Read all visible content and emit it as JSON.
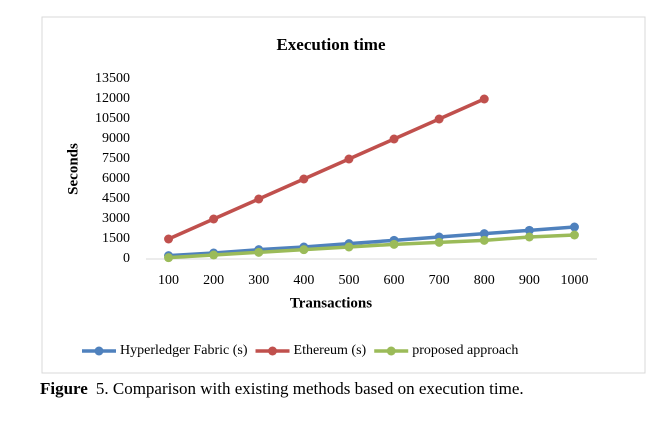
{
  "chart_data": {
    "type": "line",
    "title": "Execution time",
    "x_label": "Transactions",
    "y_label": "Seconds",
    "categories": [
      "100",
      "200",
      "300",
      "400",
      "500",
      "600",
      "700",
      "800",
      "900",
      "1000"
    ],
    "series": [
      {
        "name": "Hyperledger Fabric (s)",
        "color": "#4f81bd",
        "values": [
          250,
          450,
          700,
          900,
          1150,
          1400,
          1650,
          1900,
          2150,
          2400
        ]
      },
      {
        "name": "Ethereum (s)",
        "color": "#c0504d",
        "values": [
          1500,
          3000,
          4500,
          6000,
          7500,
          9000,
          10500,
          12000,
          null,
          null
        ]
      },
      {
        "name": "proposed approach",
        "color": "#9bbb59",
        "values": [
          100,
          300,
          500,
          700,
          900,
          1100,
          1250,
          1400,
          1650,
          1800
        ]
      }
    ],
    "ylim": [
      0,
      13500
    ],
    "yticks": [
      0,
      1500,
      3000,
      4500,
      6000,
      7500,
      9000,
      10500,
      12000,
      13500
    ],
    "grid": false,
    "legend": "bottom",
    "caption_label": "Figure",
    "caption": "5. Comparison with existing methods based on execution time."
  }
}
